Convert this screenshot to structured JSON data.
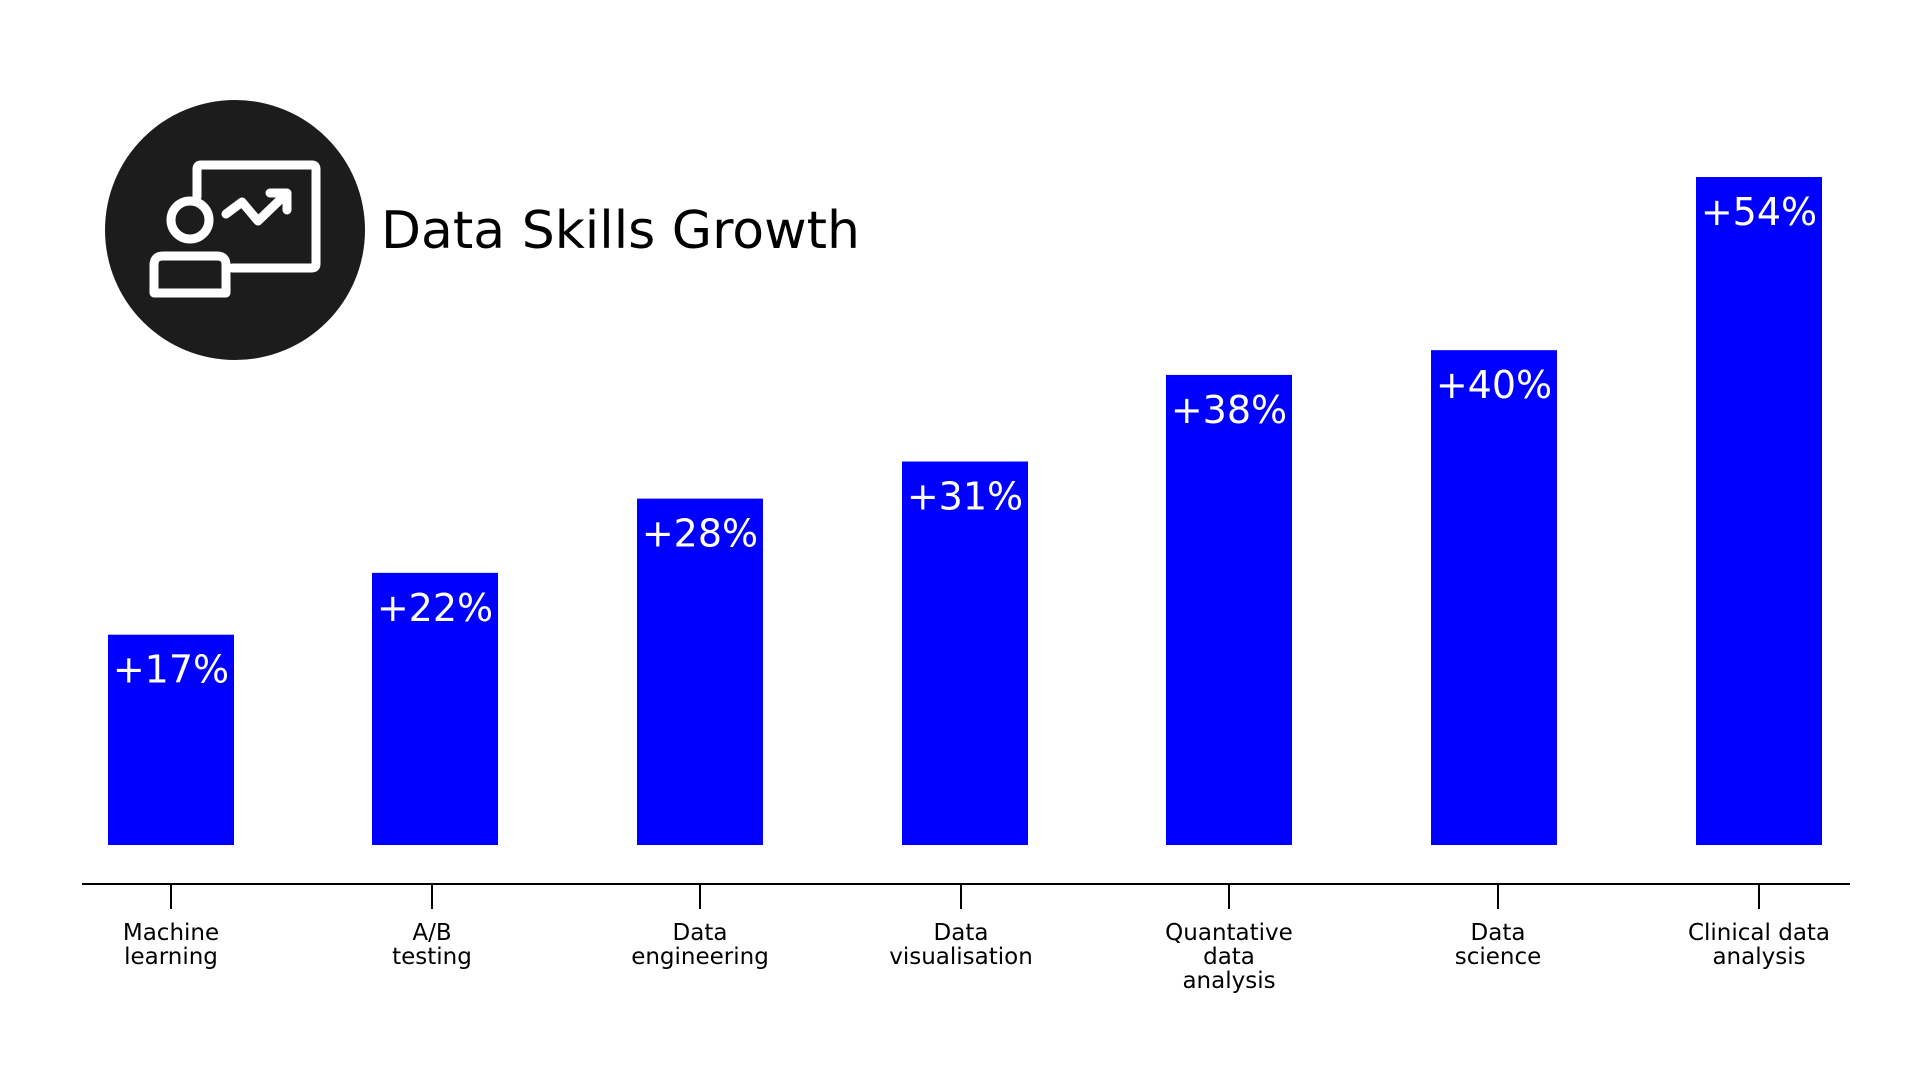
{
  "colors": {
    "bar": "#0000ff",
    "bar_label": "#ffffff",
    "icon_circle": "#1c1c1c",
    "icon_stroke": "#ffffff",
    "axis": "#000000"
  },
  "icon": "presentation-growth-icon",
  "chart_data": {
    "type": "bar",
    "title": "Data Skills Growth",
    "xlabel": "",
    "ylabel": "",
    "ylim": [
      0,
      54
    ],
    "grid": false,
    "categories": [
      [
        "Machine",
        "learning"
      ],
      [
        "A/B",
        "testing"
      ],
      [
        "Data",
        "engineering"
      ],
      [
        "Data",
        "visualisation"
      ],
      [
        "Quantative",
        "data",
        "analysis"
      ],
      [
        "Data",
        "science"
      ],
      [
        "Clinical data",
        "analysis"
      ]
    ],
    "values": [
      17,
      22,
      28,
      31,
      38,
      40,
      54
    ],
    "value_labels": [
      "+17%",
      "+22%",
      "+28%",
      "+31%",
      "+38%",
      "+40%",
      "+54%"
    ]
  }
}
